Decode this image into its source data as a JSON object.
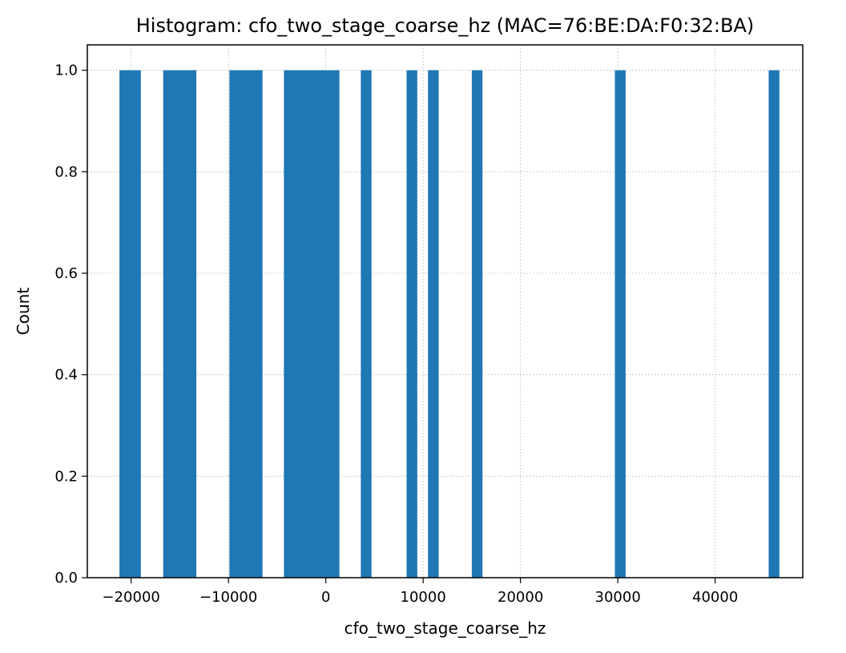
{
  "chart_data": {
    "type": "bar",
    "title": "Histogram: cfo_two_stage_coarse_hz (MAC=76:BE:DA:F0:32:BA)",
    "xlabel": "cfo_two_stage_coarse_hz",
    "ylabel": "Count",
    "xlim": [
      -24500,
      49000
    ],
    "ylim": [
      0,
      1.05
    ],
    "x_ticks": [
      -20000,
      -10000,
      0,
      10000,
      20000,
      30000,
      40000
    ],
    "x_tick_labels": [
      "−20000",
      "−10000",
      "0",
      "10000",
      "20000",
      "30000",
      "40000"
    ],
    "y_ticks": [
      0.0,
      0.2,
      0.4,
      0.6,
      0.8,
      1.0
    ],
    "y_tick_labels": [
      "0.0",
      "0.2",
      "0.4",
      "0.6",
      "0.8",
      "1.0"
    ],
    "grid": true,
    "bar_color": "#1f77b4",
    "bins": [
      {
        "x0": -21200,
        "x1": -19000,
        "value": 1
      },
      {
        "x0": -16700,
        "x1": -13300,
        "value": 1
      },
      {
        "x0": -9900,
        "x1": -6500,
        "value": 1
      },
      {
        "x0": -4300,
        "x1": 1400,
        "value": 1
      },
      {
        "x0": 3600,
        "x1": 4700,
        "value": 1
      },
      {
        "x0": 8300,
        "x1": 9400,
        "value": 1
      },
      {
        "x0": 10500,
        "x1": 11600,
        "value": 1
      },
      {
        "x0": 15000,
        "x1": 16100,
        "value": 1
      },
      {
        "x0": 29700,
        "x1": 30800,
        "value": 1
      },
      {
        "x0": 45500,
        "x1": 46600,
        "value": 1
      }
    ]
  }
}
